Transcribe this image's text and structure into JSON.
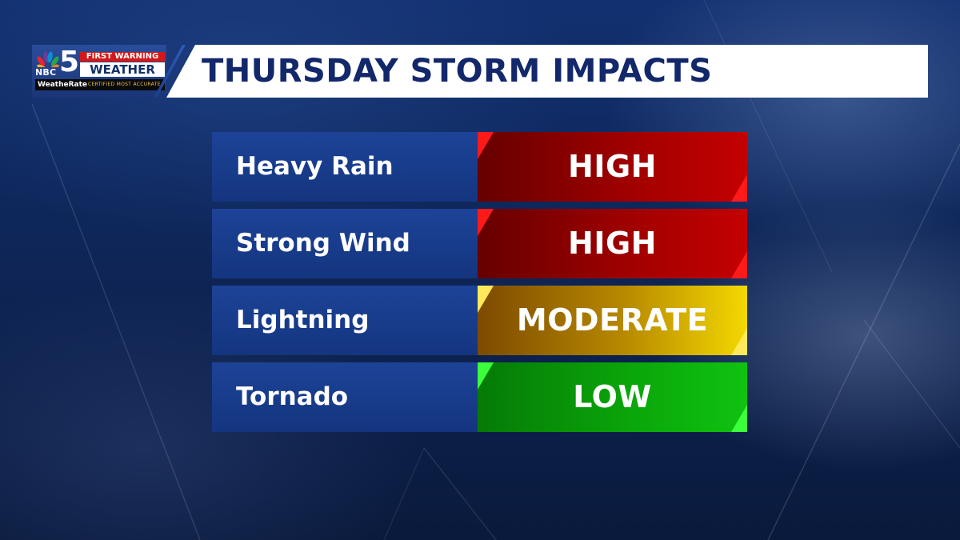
{
  "branding": {
    "network": "NBC",
    "channel": "5",
    "first_warning": "FIRST WARNING",
    "weather": "WEATHER",
    "weatherate": "WeatheRate",
    "certified": "CERTIFIED MOST ACCURATE",
    "peacock_colors": [
      "#f6b31b",
      "#e8242f",
      "#6a3d9a",
      "#0a8fd4",
      "#23a74a",
      "#f58220"
    ]
  },
  "header": {
    "title": "THURSDAY STORM IMPACTS"
  },
  "impacts": [
    {
      "label": "Heavy Rain",
      "level": "HIGH"
    },
    {
      "label": "Strong Wind",
      "level": "HIGH"
    },
    {
      "label": "Lightning",
      "level": "MODERATE"
    },
    {
      "label": "Tornado",
      "level": "LOW"
    }
  ],
  "colors": {
    "high": "#b30000",
    "moderate": "#d9b300",
    "low": "#0caf0c",
    "label_bg": "#1a3d8f",
    "title_text": "#13286a"
  }
}
